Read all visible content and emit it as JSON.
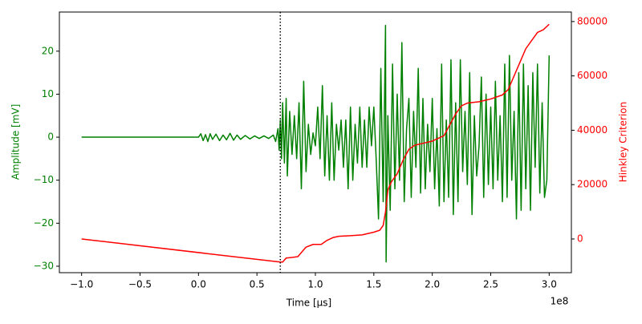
{
  "chart_data": {
    "type": "line",
    "xlabel": "Time [µs]",
    "ylabel": "Amplitude [mV]",
    "y2label": "Hinkley Criterion",
    "x_offset_label": "1e8",
    "xlim": [
      -119000000.0,
      319000000.0
    ],
    "ylim": [
      -31.5,
      29.1
    ],
    "y2lim": [
      -12400,
      83500
    ],
    "xticks": [
      {
        "value": -100000000.0,
        "label": "−1.0"
      },
      {
        "value": -50000000.0,
        "label": "−0.5"
      },
      {
        "value": 0,
        "label": "0.0"
      },
      {
        "value": 50000000.0,
        "label": "0.5"
      },
      {
        "value": 100000000.0,
        "label": "1.0"
      },
      {
        "value": 150000000.0,
        "label": "1.5"
      },
      {
        "value": 200000000.0,
        "label": "2.0"
      },
      {
        "value": 250000000.0,
        "label": "2.5"
      },
      {
        "value": 300000000.0,
        "label": "3.0"
      }
    ],
    "yticks": [
      {
        "value": -30,
        "label": "−30"
      },
      {
        "value": -20,
        "label": "−20"
      },
      {
        "value": -10,
        "label": "−10"
      },
      0,
      10,
      20
    ],
    "y2ticks": [
      0,
      20000,
      40000,
      60000,
      80000
    ],
    "ycolor": "green",
    "y2color": "red",
    "vline": 70000000.0,
    "series": [
      {
        "name": "Amplitude",
        "color": "green",
        "axis": "y",
        "x": [
          -100000000.0,
          0,
          2000000.0,
          4000000.0,
          6000000.0,
          8000000.0,
          10000000.0,
          12000000.0,
          15000000.0,
          18000000.0,
          21000000.0,
          24000000.0,
          27000000.0,
          30000000.0,
          33000000.0,
          36000000.0,
          40000000.0,
          44000000.0,
          48000000.0,
          52000000.0,
          56000000.0,
          60000000.0,
          64000000.0,
          66000000.0,
          68000000.0,
          69000000.0,
          70000000.0,
          71000000.0,
          72000000.0,
          73500000.0,
          75000000.0,
          76000000.0,
          78000000.0,
          80000000.0,
          82000000.0,
          84000000.0,
          86000000.0,
          88000000.0,
          90000000.0,
          92000000.0,
          94000000.0,
          96000000.0,
          98000000.0,
          100000000.0,
          102000000.0,
          104000000.0,
          106000000.0,
          108000000.0,
          110000000.0,
          112000000.0,
          114000000.0,
          116000000.0,
          118000000.0,
          120000000.0,
          122000000.0,
          124000000.0,
          126000000.0,
          128000000.0,
          130000000.0,
          132000000.0,
          134000000.0,
          136000000.0,
          138000000.0,
          140000000.0,
          142000000.0,
          144000000.0,
          146000000.0,
          148000000.0,
          150000000.0,
          152000000.0,
          154000000.0,
          156000000.0,
          158000000.0,
          160000000.0,
          160500000.0,
          162000000.0,
          164000000.0,
          166000000.0,
          168000000.0,
          170000000.0,
          172000000.0,
          174000000.0,
          176000000.0,
          178000000.0,
          180000000.0,
          182000000.0,
          184000000.0,
          186000000.0,
          188000000.0,
          190000000.0,
          192000000.0,
          194000000.0,
          196000000.0,
          198000000.0,
          200000000.0,
          202000000.0,
          204000000.0,
          206000000.0,
          208000000.0,
          210000000.0,
          212000000.0,
          214000000.0,
          216000000.0,
          218000000.0,
          220000000.0,
          222000000.0,
          224000000.0,
          226000000.0,
          228000000.0,
          230000000.0,
          232000000.0,
          234000000.0,
          236000000.0,
          238000000.0,
          240000000.0,
          242000000.0,
          244000000.0,
          246000000.0,
          248000000.0,
          250000000.0,
          252000000.0,
          254000000.0,
          256000000.0,
          258000000.0,
          260000000.0,
          262000000.0,
          264000000.0,
          266000000.0,
          268000000.0,
          270000000.0,
          272000000.0,
          274000000.0,
          276000000.0,
          278000000.0,
          280000000.0,
          282000000.0,
          284000000.0,
          286000000.0,
          288000000.0,
          290000000.0,
          292000000.0,
          294000000.0,
          296000000.0,
          298000000.0,
          300000000.0
        ],
        "values": [
          0,
          0,
          0.8,
          -0.8,
          0.6,
          -1,
          0.8,
          -0.5,
          0.7,
          -0.8,
          0.5,
          -0.6,
          0.9,
          -0.7,
          0.5,
          -0.5,
          0.4,
          -0.4,
          0.3,
          -0.3,
          0.3,
          -0.3,
          0.5,
          -1,
          2,
          -3,
          4,
          -5,
          8,
          -6,
          9,
          -9,
          6,
          -4,
          5,
          -5,
          8,
          -12,
          13,
          -8,
          3,
          -4,
          1,
          -2,
          7,
          -5,
          12,
          -9,
          5,
          -10,
          8,
          -10,
          3,
          -3,
          4,
          -7,
          4,
          -12,
          7,
          -10,
          3,
          -6,
          7,
          -7,
          4,
          -7,
          7,
          -2,
          7,
          -5,
          -19,
          16,
          -15,
          26,
          -29,
          5,
          -17,
          17,
          -12,
          10,
          -10,
          22,
          -15,
          2,
          9,
          -14,
          6,
          -7,
          16,
          -13,
          9,
          -12,
          3,
          -8,
          9,
          -12,
          2,
          -16,
          17,
          -15,
          4,
          -14,
          18,
          -18,
          8,
          -15,
          18,
          -8,
          6,
          -11,
          15,
          -18,
          5,
          -9,
          -2,
          14,
          -14,
          10,
          -11,
          7,
          -12,
          13,
          -10,
          5,
          -15,
          17,
          -14,
          19,
          -10,
          6,
          -19,
          15,
          -17,
          17,
          -12,
          12,
          -17,
          15,
          -7,
          17,
          -13,
          8,
          -14,
          -10,
          19
        ]
      },
      {
        "name": "Hinkley Criterion",
        "color": "red",
        "axis": "y2",
        "x": [
          -100000000.0,
          70000000.0,
          72000000.0,
          75000000.0,
          80000000.0,
          85000000.0,
          88000000.0,
          92000000.0,
          98000000.0,
          105000000.0,
          110000000.0,
          115000000.0,
          120000000.0,
          130000000.0,
          140000000.0,
          150000000.0,
          155000000.0,
          158000000.0,
          160000000.0,
          162000000.0,
          165000000.0,
          170000000.0,
          175000000.0,
          180000000.0,
          185000000.0,
          190000000.0,
          195000000.0,
          200000000.0,
          205000000.0,
          210000000.0,
          215000000.0,
          220000000.0,
          225000000.0,
          230000000.0,
          240000000.0,
          245000000.0,
          250000000.0,
          260000000.0,
          265000000.0,
          270000000.0,
          275000000.0,
          280000000.0,
          285000000.0,
          290000000.0,
          295000000.0,
          300000000.0
        ],
        "values": [
          0,
          -8500,
          -8500,
          -7000,
          -6800,
          -6500,
          -5000,
          -3000,
          -2000,
          -2000,
          -500,
          500,
          1000,
          1200,
          1500,
          2500,
          3200,
          5000,
          10000,
          18000,
          21000,
          24000,
          29000,
          33000,
          34500,
          35000,
          35500,
          36000,
          37000,
          38000,
          42000,
          46000,
          49000,
          50000,
          50500,
          51000,
          51500,
          53000,
          55000,
          60000,
          65000,
          70000,
          73000,
          76000,
          77000,
          79000
        ]
      }
    ]
  }
}
